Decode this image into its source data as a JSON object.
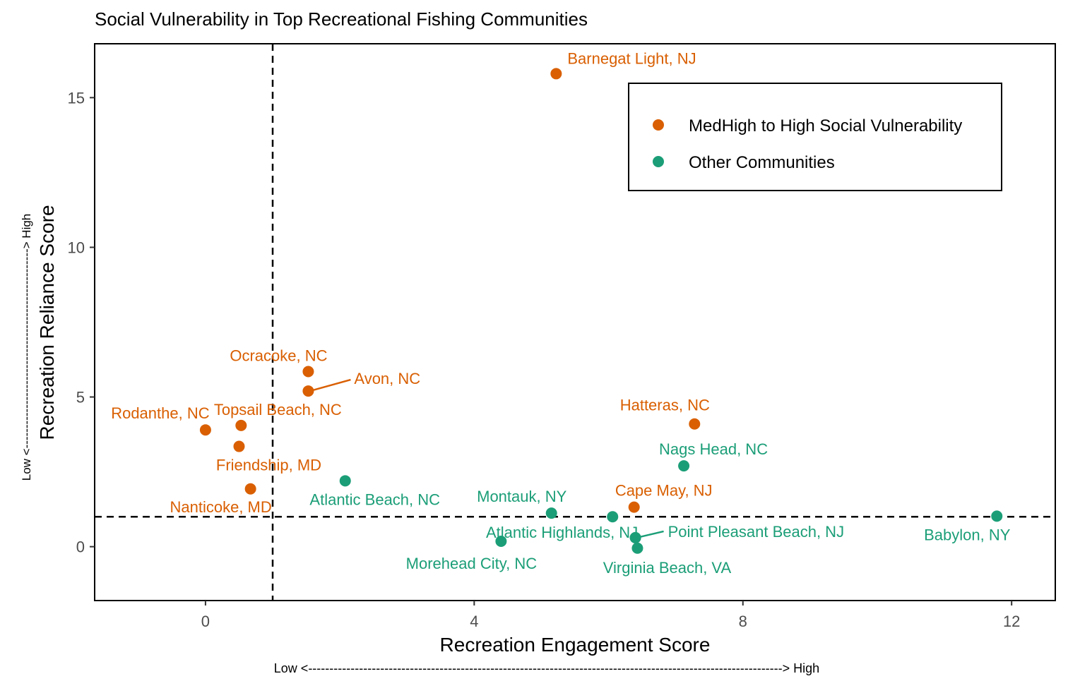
{
  "chart_data": {
    "type": "scatter",
    "title": "Social Vulnerability in Top Recreational Fishing Communities",
    "xlabel": "Recreation Engagement Score",
    "ylabel": "Recreation Reliance Score",
    "x_direction_note": "Low <----------------------------------------------------------------------------------------------------------------> High",
    "y_direction_note": "Low <--------------------------------------------------> High",
    "xlim": [
      -1.65,
      12.65
    ],
    "ylim": [
      -1.8,
      16.8
    ],
    "x_ticks": [
      0,
      4,
      8,
      12
    ],
    "y_ticks": [
      0,
      5,
      10,
      15
    ],
    "grid": false,
    "reference_lines": {
      "x": 1.0,
      "y": 1.0,
      "style": "dashed"
    },
    "legend": {
      "position": "top-right"
    },
    "colors": {
      "high": "#d95f02",
      "other": "#1b9e77",
      "axis": "#000000",
      "tick_text": "#4d4d4d"
    },
    "series": [
      {
        "name": "MedHigh to High Social Vulnerability",
        "color_key": "high",
        "points": [
          {
            "label": "Barnegat Light, NJ",
            "x": 5.22,
            "y": 15.8
          },
          {
            "label": "Ocracoke, NC",
            "x": 1.53,
            "y": 5.85
          },
          {
            "label": "Avon, NC",
            "x": 1.53,
            "y": 5.2
          },
          {
            "label": "Topsail Beach, NC",
            "x": 0.53,
            "y": 4.05
          },
          {
            "label": "Rodanthe, NC",
            "x": 0.0,
            "y": 3.9
          },
          {
            "label": "Friendship, MD",
            "x": 0.5,
            "y": 3.35
          },
          {
            "label": "Nanticoke, MD",
            "x": 0.67,
            "y": 1.93
          },
          {
            "label": "Hatteras, NC",
            "x": 7.28,
            "y": 4.1
          },
          {
            "label": "Cape May, NJ",
            "x": 6.38,
            "y": 1.32
          }
        ]
      },
      {
        "name": "Other Communities",
        "color_key": "other",
        "points": [
          {
            "label": "Atlantic Beach, NC",
            "x": 2.08,
            "y": 2.2
          },
          {
            "label": "Nags Head, NC",
            "x": 7.12,
            "y": 2.7
          },
          {
            "label": "Montauk, NY",
            "x": 5.15,
            "y": 1.12
          },
          {
            "label": "",
            "x": 6.06,
            "y": 1.0
          },
          {
            "label": "Atlantic Highlands, NJ",
            "x": 6.4,
            "y": 0.3
          },
          {
            "label": "Point Pleasant Beach, NJ",
            "x": 6.4,
            "y": 0.3
          },
          {
            "label": "Virginia Beach, VA",
            "x": 6.43,
            "y": -0.05
          },
          {
            "label": "Morehead City, NC",
            "x": 4.4,
            "y": 0.18
          },
          {
            "label": "Babylon, NY",
            "x": 11.78,
            "y": 1.02
          }
        ]
      }
    ]
  }
}
